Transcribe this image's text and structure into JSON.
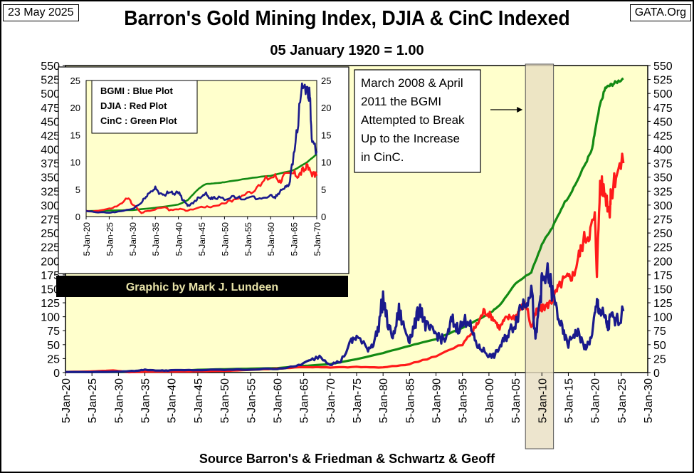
{
  "header": {
    "date": "23 May 2025",
    "site": "GATA.Org",
    "title": "Barron's Gold Mining Index, DJIA & CinC Indexed",
    "subtitle": "05 January 1920 = 1.00"
  },
  "chart_data": [
    {
      "type": "line",
      "title": "Barron's Gold Mining Index, DJIA & CinC Indexed",
      "subtitle": "05 January 1920 = 1.00",
      "xlabel": "Source Barron's & Friedman & Schwartz & Geoff",
      "ylim": [
        0,
        550
      ],
      "y_ticks": [
        0,
        25,
        50,
        75,
        100,
        125,
        150,
        175,
        200,
        225,
        250,
        275,
        300,
        325,
        350,
        375,
        400,
        425,
        450,
        475,
        500,
        525,
        550
      ],
      "x_tick_labels": [
        "5-Jan-20",
        "5-Jan-25",
        "5-Jan-30",
        "5-Jan-35",
        "5-Jan-40",
        "5-Jan-45",
        "5-Jan-50",
        "5-Jan-55",
        "5-Jan-60",
        "5-Jan-65",
        "5-Jan-70",
        "5-Jan-75",
        "5-Jan-80",
        "5-Jan-85",
        "5-Jan-90",
        "5-Jan-95",
        "5-Jan-00",
        "5-Jan-05",
        "5-Jan-10",
        "5-Jan-15",
        "5-Jan-20",
        "5-Jan-25",
        "5-Jan-30"
      ],
      "x_tick_years": [
        1920,
        1925,
        1930,
        1935,
        1940,
        1945,
        1950,
        1955,
        1960,
        1965,
        1970,
        1975,
        1980,
        1985,
        1990,
        1995,
        2000,
        2005,
        2010,
        2015,
        2020,
        2025,
        2030
      ],
      "xlim": [
        1920,
        2030
      ],
      "grid": false,
      "colors": {
        "BGMI": "#1a1a8c",
        "DJIA": "#ff1a1a",
        "CinC": "#138a13",
        "plot_bg": "#ffffcc",
        "band": "#e8dfc2"
      },
      "highlight_band": [
        2006.9,
        2012.2
      ],
      "annotation": [
        "March 2008 & April",
        "2011 the BGMI",
        "Attempted to Break",
        "Up to the Increase",
        "in CinC."
      ],
      "credit": "Graphic by Mark J. Lundeen",
      "series": [
        {
          "key": "BGMI",
          "x": [
            1920,
            1925,
            1930,
            1933,
            1935,
            1938,
            1940,
            1945,
            1950,
            1955,
            1960,
            1963,
            1966,
            1968,
            1970,
            1972,
            1974,
            1975,
            1977,
            1978,
            1979,
            1980,
            1981,
            1982,
            1983,
            1984,
            1985,
            1986,
            1987,
            1988,
            1989,
            1990,
            1991,
            1992,
            1993,
            1994,
            1995,
            1996,
            1997,
            1998,
            1999,
            2000,
            2001,
            2002,
            2003,
            2004,
            2005,
            2006,
            2007,
            2008,
            2008.8,
            2009.5,
            2010,
            2011.3,
            2012,
            2013,
            2014,
            2015,
            2016,
            2017,
            2018,
            2019,
            2020,
            2020.5,
            2021,
            2022,
            2022.5,
            2023,
            2024,
            2025.4
          ],
          "y": [
            1,
            1,
            1.5,
            3,
            5,
            3.5,
            4,
            4.5,
            5,
            5.5,
            7,
            10,
            20,
            30,
            15,
            20,
            55,
            65,
            42,
            50,
            75,
            135,
            80,
            65,
            110,
            80,
            60,
            85,
            120,
            85,
            75,
            70,
            60,
            60,
            95,
            80,
            85,
            100,
            65,
            45,
            40,
            30,
            30,
            45,
            60,
            75,
            90,
            120,
            130,
            155,
            55,
            120,
            160,
            175,
            140,
            105,
            70,
            50,
            70,
            70,
            45,
            50,
            100,
            125,
            110,
            95,
            80,
            100,
            90,
            110
          ]
        },
        {
          "key": "DJIA",
          "x": [
            1920,
            1925,
            1929,
            1932,
            1935,
            1940,
            1945,
            1950,
            1955,
            1960,
            1965,
            1970,
            1975,
            1980,
            1985,
            1990,
            1995,
            1997,
            1998,
            1999,
            2000,
            2001,
            2002,
            2003,
            2004,
            2005,
            2006,
            2007,
            2008,
            2009,
            2010,
            2011,
            2012,
            2013,
            2014,
            2015,
            2016,
            2017,
            2018,
            2019,
            2020,
            2020.4,
            2021,
            2022,
            2022.8,
            2023,
            2024,
            2025.4
          ],
          "y": [
            1,
            2,
            4,
            0.6,
            1.5,
            1.7,
            2.2,
            3,
            5,
            7,
            10,
            9,
            10,
            9,
            15,
            30,
            50,
            75,
            90,
            110,
            105,
            95,
            80,
            95,
            100,
            100,
            115,
            125,
            80,
            110,
            115,
            120,
            130,
            150,
            165,
            170,
            175,
            210,
            240,
            250,
            280,
            180,
            340,
            320,
            290,
            310,
            360,
            375
          ]
        },
        {
          "key": "CinC",
          "x": [
            1920,
            1930,
            1935,
            1940,
            1945,
            1950,
            1955,
            1960,
            1965,
            1970,
            1975,
            1980,
            1985,
            1990,
            1995,
            2000,
            2002,
            2005,
            2008,
            2010,
            2012,
            2014,
            2016,
            2018,
            2019.5,
            2020,
            2021,
            2022,
            2023,
            2024,
            2025.4
          ],
          "y": [
            1,
            1,
            1.5,
            2,
            5,
            6,
            7,
            8,
            12,
            15,
            24,
            35,
            48,
            60,
            80,
            105,
            120,
            160,
            180,
            230,
            260,
            300,
            330,
            370,
            400,
            430,
            480,
            510,
            515,
            520,
            527
          ]
        }
      ]
    },
    {
      "type": "line",
      "legend": [
        "BGMI  : Blue Plot",
        "DJIA  :  Red Plot",
        "CinC   : Green Plot"
      ],
      "ylim": [
        0,
        25
      ],
      "y_ticks": [
        0,
        5,
        10,
        15,
        20,
        25
      ],
      "x_tick_labels": [
        "5-Jan-20",
        "5-Jan-25",
        "5-Jan-30",
        "5-Jan-35",
        "5-Jan-40",
        "5-Jan-45",
        "5-Jan-50",
        "5-Jan-55",
        "5-Jan-60",
        "5-Jan-65",
        "5-Jan-70"
      ],
      "x_tick_years": [
        1920,
        1925,
        1930,
        1935,
        1940,
        1945,
        1950,
        1955,
        1960,
        1965,
        1970
      ],
      "xlim": [
        1920,
        1970
      ],
      "grid": false,
      "series": [
        {
          "key": "BGMI",
          "x": [
            1920,
            1922,
            1925,
            1927,
            1930,
            1932,
            1933,
            1934,
            1935,
            1936,
            1937,
            1938,
            1939,
            1940,
            1941,
            1942,
            1943,
            1944,
            1945,
            1946,
            1947,
            1948,
            1950,
            1952,
            1954,
            1956,
            1958,
            1960,
            1961,
            1962,
            1963,
            1964,
            1965,
            1966,
            1967,
            1968,
            1968.5,
            1969,
            1970
          ],
          "y": [
            1,
            0.8,
            0.7,
            0.9,
            1.4,
            2.5,
            3.8,
            4.5,
            5.3,
            4.3,
            3.7,
            4.8,
            4.2,
            4.5,
            3,
            2,
            2.4,
            3.2,
            3.8,
            4.3,
            3.3,
            3.5,
            3.3,
            3.6,
            3.3,
            3.5,
            3.1,
            4,
            3.5,
            4.5,
            5.5,
            6,
            11,
            18,
            25,
            22,
            22,
            13,
            12
          ]
        },
        {
          "key": "DJIA",
          "x": [
            1920,
            1922,
            1925,
            1927,
            1929,
            1930,
            1932,
            1933,
            1935,
            1937,
            1938,
            1940,
            1942,
            1945,
            1947,
            1950,
            1952,
            1955,
            1957,
            1959,
            1961,
            1962,
            1963,
            1965,
            1966,
            1967,
            1968,
            1969,
            1970
          ],
          "y": [
            1,
            1,
            1.4,
            2,
            3.4,
            2.4,
            0.6,
            1,
            1.3,
            1.8,
            1.2,
            1.4,
            1.1,
            1.8,
            1.8,
            2.5,
            3,
            4.4,
            5,
            7,
            7.5,
            6.5,
            7.5,
            8,
            7.5,
            8.5,
            9,
            8,
            7.5
          ]
        },
        {
          "key": "CinC",
          "x": [
            1920,
            1925,
            1930,
            1935,
            1940,
            1942,
            1944,
            1945,
            1946,
            1948,
            1950,
            1955,
            1960,
            1965,
            1968,
            1970
          ],
          "y": [
            1,
            1.1,
            1.2,
            1.6,
            2.2,
            3,
            4.8,
            5.5,
            6,
            6.1,
            6.3,
            7,
            7.5,
            8.5,
            10,
            11.5
          ]
        }
      ]
    }
  ]
}
